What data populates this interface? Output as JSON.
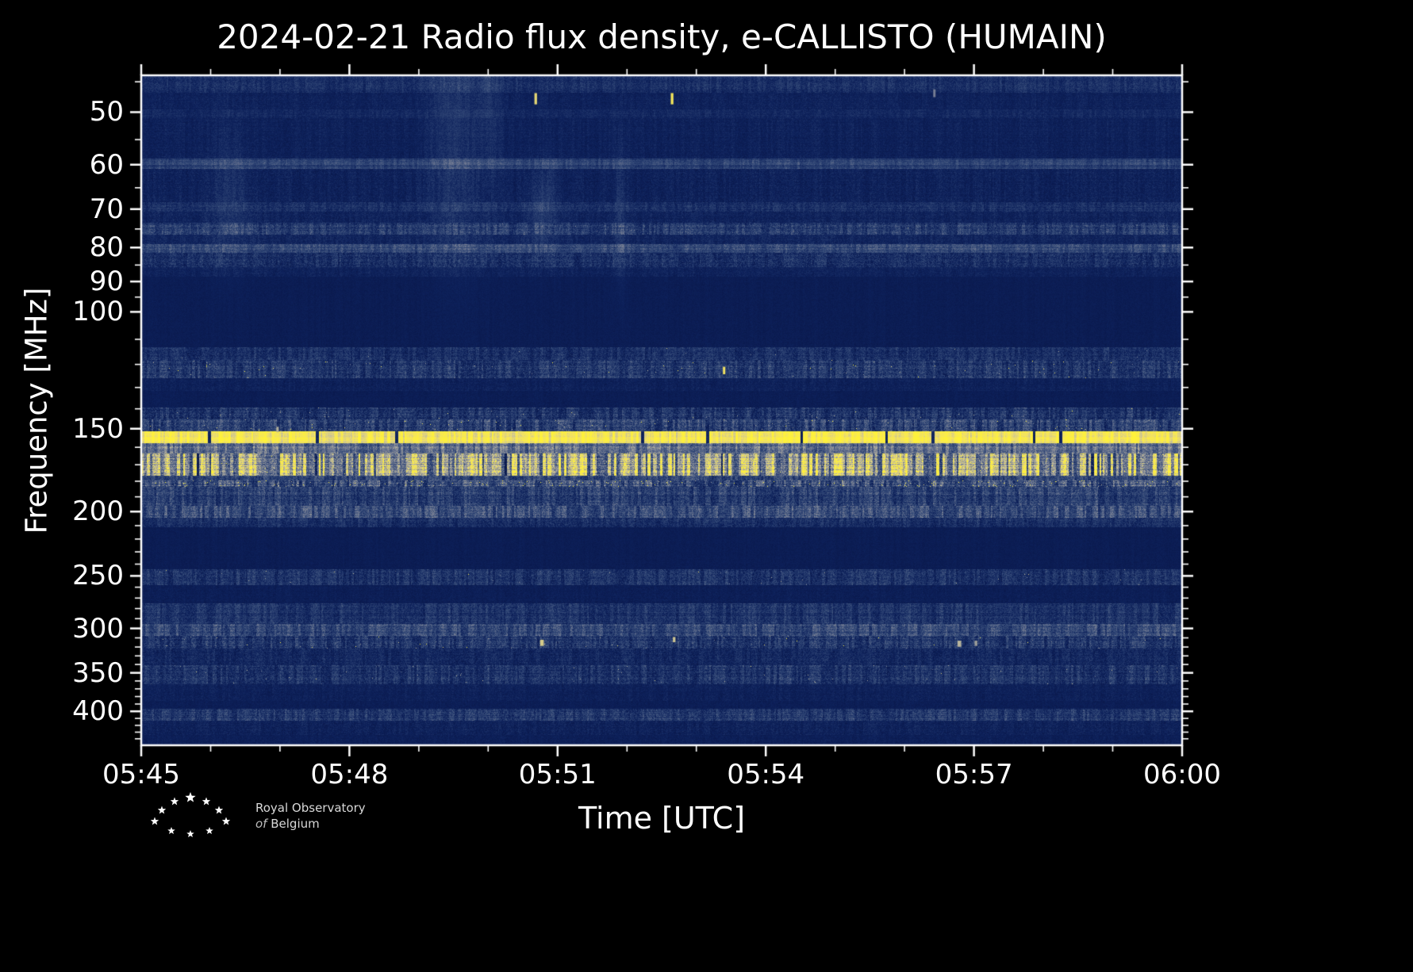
{
  "title": "2024-02-21 Radio flux density, e-CALLISTO (HUMAIN)",
  "axes": {
    "x_label": "Time [UTC]",
    "y_label": "Frequency [MHz]",
    "x_major": [
      {
        "label": "05:45",
        "t": 0.0
      },
      {
        "label": "05:48",
        "t": 0.2
      },
      {
        "label": "05:51",
        "t": 0.4
      },
      {
        "label": "05:54",
        "t": 0.6
      },
      {
        "label": "05:57",
        "t": 0.8
      },
      {
        "label": "06:00",
        "t": 1.0
      }
    ],
    "x_minor_t": [
      0.0667,
      0.1333,
      0.2667,
      0.3333,
      0.4667,
      0.5333,
      0.6667,
      0.7333,
      0.8667,
      0.9333
    ],
    "y_major": [
      {
        "label": "50",
        "f": 50
      },
      {
        "label": "60",
        "f": 60
      },
      {
        "label": "70",
        "f": 70
      },
      {
        "label": "80",
        "f": 80
      },
      {
        "label": "90",
        "f": 90
      },
      {
        "label": "100",
        "f": 100
      },
      {
        "label": "150",
        "f": 150
      },
      {
        "label": "200",
        "f": 200
      },
      {
        "label": "250",
        "f": 250
      },
      {
        "label": "300",
        "f": 300
      },
      {
        "label": "350",
        "f": 350
      },
      {
        "label": "400",
        "f": 400
      }
    ],
    "y_minor_f": [
      45,
      55,
      65,
      75,
      85,
      95,
      110,
      120,
      130,
      140,
      160,
      170,
      180,
      190,
      210,
      220,
      230,
      240,
      260,
      270,
      280,
      290,
      310,
      320,
      330,
      340,
      360,
      370,
      380,
      390,
      410,
      420,
      430,
      440
    ]
  },
  "logo": {
    "line1": "Royal Observatory",
    "line2_of": "of",
    "line2_name": "Belgium"
  },
  "chart_data": {
    "type": "heatmap",
    "subtype": "radio-spectrogram",
    "network": "e-CALLISTO",
    "station": "HUMAIN",
    "date": "2024-02-21",
    "quantity": "Radio flux density",
    "time_range": [
      "05:45",
      "06:00"
    ],
    "freq_range": [
      44,
      450
    ],
    "freq_scale": "log10",
    "freq_axis_inverted_low_at_top": true,
    "colormap": [
      [
        0.0,
        [
          8,
          21,
          70
        ]
      ],
      [
        0.15,
        [
          14,
          34,
          92
        ]
      ],
      [
        0.35,
        [
          52,
          74,
          120
        ]
      ],
      [
        0.55,
        [
          118,
          126,
          148
        ]
      ],
      [
        0.75,
        [
          196,
          190,
          158
        ]
      ],
      [
        0.88,
        [
          240,
          224,
          104
        ]
      ],
      [
        1.0,
        [
          255,
          242,
          58
        ]
      ]
    ],
    "bands": [
      {
        "f": [
          44.0,
          46.8
        ],
        "base": 0.21,
        "noise": 0.08,
        "colvar": 0.22,
        "rowvar": 0.15
      },
      {
        "f": [
          46.8,
          49.5
        ],
        "base": 0.14,
        "noise": 0.06,
        "colvar": 0.15,
        "rowvar": 0.12
      },
      {
        "f": [
          49.5,
          51.0
        ],
        "base": 0.17,
        "noise": 0.06,
        "colvar": 0.15,
        "rowvar": 0.12
      },
      {
        "f": [
          51.0,
          58.8
        ],
        "base": 0.13,
        "noise": 0.06,
        "colvar": 0.18,
        "rowvar": 0.12
      },
      {
        "f": [
          58.8,
          60.9
        ],
        "base": 0.3,
        "noise": 0.07,
        "colvar": 0.15,
        "rowvar": 0.18
      },
      {
        "f": [
          60.9,
          68.4
        ],
        "base": 0.14,
        "noise": 0.07,
        "colvar": 0.2,
        "rowvar": 0.12
      },
      {
        "f": [
          68.4,
          70.6
        ],
        "base": 0.21,
        "noise": 0.08,
        "colvar": 0.2,
        "rowvar": 0.15
      },
      {
        "f": [
          70.6,
          73.4
        ],
        "base": 0.15,
        "noise": 0.07,
        "colvar": 0.18,
        "rowvar": 0.12
      },
      {
        "f": [
          73.4,
          76.6
        ],
        "base": 0.26,
        "noise": 0.11,
        "colvar": 0.28,
        "rowvar": 0.18,
        "sp": 0.001,
        "ss": 0.3
      },
      {
        "f": [
          76.6,
          79.0
        ],
        "base": 0.16,
        "noise": 0.07,
        "colvar": 0.18,
        "rowvar": 0.12
      },
      {
        "f": [
          79.0,
          81.6
        ],
        "base": 0.33,
        "noise": 0.09,
        "colvar": 0.18,
        "rowvar": 0.18
      },
      {
        "f": [
          81.6,
          85.6
        ],
        "base": 0.21,
        "noise": 0.11,
        "colvar": 0.28,
        "rowvar": 0.15
      },
      {
        "f": [
          85.6,
          88.5
        ],
        "base": 0.14,
        "noise": 0.06,
        "colvar": 0.15,
        "rowvar": 0.1
      },
      {
        "f": [
          88.5,
          113.0
        ],
        "base": 0.095,
        "noise": 0.035,
        "colvar": 0.1,
        "rowvar": 0.06
      },
      {
        "f": [
          113.0,
          118.0
        ],
        "base": 0.21,
        "noise": 0.1,
        "colvar": 0.28,
        "rowvar": 0.15,
        "sp": 0.001,
        "ss": 0.35
      },
      {
        "f": [
          118.0,
          126.0
        ],
        "base": 0.25,
        "noise": 0.12,
        "colvar": 0.32,
        "rowvar": 0.18,
        "sp": 0.003,
        "ss": 0.5
      },
      {
        "f": [
          126.0,
          131.5
        ],
        "base": 0.13,
        "noise": 0.06,
        "colvar": 0.15,
        "rowvar": 0.1
      },
      {
        "f": [
          131.5,
          139.5
        ],
        "base": 0.1,
        "noise": 0.04,
        "colvar": 0.1,
        "rowvar": 0.06
      },
      {
        "f": [
          139.5,
          145.2
        ],
        "base": 0.23,
        "noise": 0.12,
        "colvar": 0.35,
        "rowvar": 0.18,
        "sp": 0.003,
        "ss": 0.4
      },
      {
        "f": [
          145.2,
          151.4
        ],
        "base": 0.29,
        "noise": 0.13,
        "colvar": 0.4,
        "rowvar": 0.18,
        "sp": 0.004,
        "ss": 0.5
      },
      {
        "f": [
          151.4,
          157.6
        ],
        "base": 0.93,
        "noise": 0.05,
        "colvar": 0.1,
        "rowvar": 0.06,
        "dropout": 0.035
      },
      {
        "f": [
          157.6,
          163.4
        ],
        "base": 0.47,
        "noise": 0.11,
        "colvar": 0.25,
        "rowvar": 0.15
      },
      {
        "f": [
          163.4,
          176.6
        ],
        "base": 0.63,
        "noise": 0.16,
        "colvar": 0.5,
        "rowvar": 0.15,
        "sp": 0.008,
        "ss": 0.35,
        "dropout": 0.02
      },
      {
        "f": [
          176.6,
          179.6
        ],
        "base": 0.33,
        "noise": 0.11,
        "colvar": 0.3,
        "rowvar": 0.15
      },
      {
        "f": [
          179.6,
          183.6
        ],
        "base": 0.38,
        "noise": 0.14,
        "colvar": 0.45,
        "rowvar": 0.18,
        "sp": 0.02,
        "ss": 0.55
      },
      {
        "f": [
          183.6,
          196.0
        ],
        "base": 0.29,
        "noise": 0.12,
        "colvar": 0.32,
        "rowvar": 0.15
      },
      {
        "f": [
          196.0,
          204.5
        ],
        "base": 0.35,
        "noise": 0.12,
        "colvar": 0.32,
        "rowvar": 0.18
      },
      {
        "f": [
          204.5,
          211.0
        ],
        "base": 0.21,
        "noise": 0.1,
        "colvar": 0.25,
        "rowvar": 0.12
      },
      {
        "f": [
          211.0,
          244.5
        ],
        "base": 0.095,
        "noise": 0.035,
        "colvar": 0.1,
        "rowvar": 0.06
      },
      {
        "f": [
          244.5,
          258.0
        ],
        "base": 0.23,
        "noise": 0.11,
        "colvar": 0.32,
        "rowvar": 0.15,
        "sp": 0.002,
        "ss": 0.4
      },
      {
        "f": [
          258.0,
          275.0
        ],
        "base": 0.11,
        "noise": 0.05,
        "colvar": 0.12,
        "rowvar": 0.08
      },
      {
        "f": [
          275.0,
          295.0
        ],
        "base": 0.23,
        "noise": 0.1,
        "colvar": 0.28,
        "rowvar": 0.15
      },
      {
        "f": [
          295.0,
          307.5
        ],
        "base": 0.33,
        "noise": 0.11,
        "colvar": 0.3,
        "rowvar": 0.18
      },
      {
        "f": [
          307.5,
          322.0
        ],
        "base": 0.25,
        "noise": 0.12,
        "colvar": 0.35,
        "rowvar": 0.18,
        "sp": 0.003,
        "ss": 0.55
      },
      {
        "f": [
          322.0,
          341.0
        ],
        "base": 0.17,
        "noise": 0.09,
        "colvar": 0.25,
        "rowvar": 0.12
      },
      {
        "f": [
          341.0,
          364.0
        ],
        "base": 0.23,
        "noise": 0.11,
        "colvar": 0.32,
        "rowvar": 0.15,
        "sp": 0.003,
        "ss": 0.4
      },
      {
        "f": [
          364.0,
          386.0
        ],
        "base": 0.13,
        "noise": 0.06,
        "colvar": 0.15,
        "rowvar": 0.1
      },
      {
        "f": [
          386.0,
          396.5
        ],
        "base": 0.105,
        "noise": 0.045,
        "colvar": 0.1,
        "rowvar": 0.07
      },
      {
        "f": [
          396.5,
          413.0
        ],
        "base": 0.25,
        "noise": 0.11,
        "colvar": 0.3,
        "rowvar": 0.15
      },
      {
        "f": [
          413.0,
          434.0
        ],
        "base": 0.14,
        "noise": 0.07,
        "colvar": 0.18,
        "rowvar": 0.1
      },
      {
        "f": [
          434.0,
          450.0
        ],
        "base": 0.12,
        "noise": 0.05,
        "colvar": 0.12,
        "rowvar": 0.08
      }
    ],
    "plumes": [
      {
        "t": 0.085,
        "f": 68,
        "st": 0.013,
        "sf": 0.07,
        "amp": 0.1
      },
      {
        "t": 0.3,
        "f": 55,
        "st": 0.016,
        "sf": 0.14,
        "amp": 0.11
      },
      {
        "t": 0.335,
        "f": 50,
        "st": 0.008,
        "sf": 0.1,
        "amp": 0.08
      },
      {
        "t": 0.385,
        "f": 70,
        "st": 0.009,
        "sf": 0.045,
        "amp": 0.14
      },
      {
        "t": 0.46,
        "f": 73,
        "st": 0.004,
        "sf": 0.08,
        "amp": 0.1
      }
    ],
    "events": [
      {
        "t": 0.379,
        "f": 46.8,
        "df": 1.6,
        "wt": 0.0025,
        "v": 0.85
      },
      {
        "t": 0.51,
        "f": 46.8,
        "df": 1.6,
        "wt": 0.0025,
        "v": 0.92
      },
      {
        "t": 0.762,
        "f": 46.2,
        "df": 1.0,
        "wt": 0.002,
        "v": 0.55
      },
      {
        "t": 0.56,
        "f": 121.0,
        "df": 2.5,
        "wt": 0.002,
        "v": 0.9
      },
      {
        "t": 0.131,
        "f": 149.0,
        "df": 2.0,
        "wt": 0.002,
        "v": 0.7
      },
      {
        "t": 0.385,
        "f": 312.0,
        "df": 5.0,
        "wt": 0.0035,
        "v": 0.8
      },
      {
        "t": 0.512,
        "f": 309.0,
        "df": 4.0,
        "wt": 0.0025,
        "v": 0.78
      },
      {
        "t": 0.786,
        "f": 313.0,
        "df": 5.0,
        "wt": 0.0035,
        "v": 0.72
      },
      {
        "t": 0.802,
        "f": 313.0,
        "df": 4.0,
        "wt": 0.0025,
        "v": 0.65
      }
    ]
  }
}
